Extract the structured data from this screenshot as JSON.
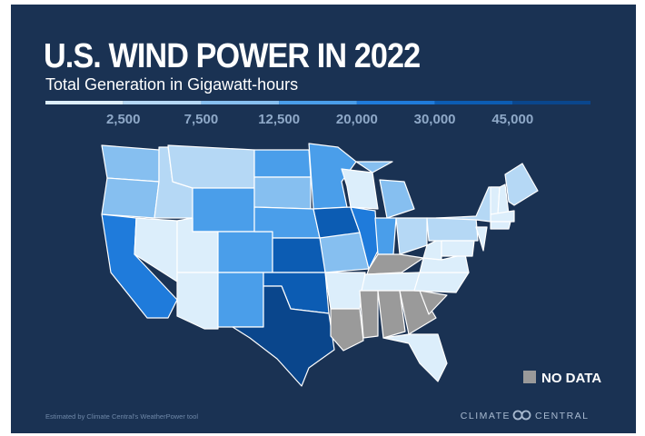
{
  "header": {
    "title": "U.S. WIND POWER IN 2022",
    "subtitle": "Total Generation in Gigawatt-hours"
  },
  "legend": {
    "colors": [
      "#dceefb",
      "#b5d8f5",
      "#86bff0",
      "#4a9eea",
      "#1f7bdb",
      "#0c5cb3",
      "#0a468c"
    ],
    "labels": [
      "2,500",
      "7,500",
      "12,500",
      "20,000",
      "30,000",
      "45,000"
    ]
  },
  "no_data": {
    "label": "NO DATA",
    "color": "#9a9a9a"
  },
  "footer": {
    "note": "Estimated by Climate Central's WeatherPower tool",
    "logo_left": "CLIMATE",
    "logo_right": "CENTRAL"
  }
}
